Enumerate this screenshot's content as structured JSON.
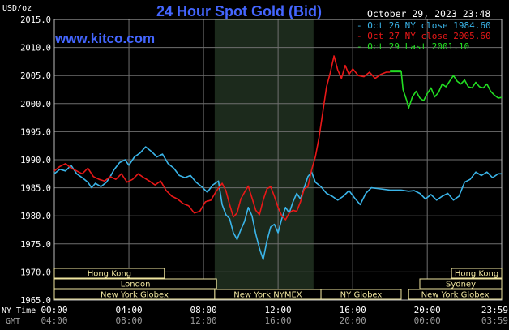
{
  "header": {
    "title": "24 Hour Spot Gold (Bid)",
    "site": "www.kitco.com",
    "timestamp": "October 29, 2023 23:48",
    "currency_label": "USD/oz"
  },
  "colors": {
    "background": "#000000",
    "grid": "#6f6f6f",
    "axis_text": "#ffffff",
    "title": "#4466ff",
    "site": "#4466ff",
    "shade": "#1c2a1c",
    "oct26": "#3ab4e8",
    "oct27": "#e81818",
    "oct29": "#22dd22",
    "market_bar_fill": "#000000",
    "market_bar_text": "#f0e6a0",
    "market_bar_border": "#f0e6a0"
  },
  "axes": {
    "time_row_label": "NY Time",
    "gmt_row_label": "GMT",
    "ny_ticks": [
      "00:00",
      "04:00",
      "08:00",
      "12:00",
      "16:00",
      "20:00",
      "23:59"
    ],
    "gmt_ticks": [
      "04:00",
      "08:00",
      "12:00",
      "16:00",
      "20:00",
      "00:00",
      "03:59"
    ]
  },
  "legend": [
    {
      "text": "Oct 26 NY close 1984.60",
      "color": "#3ab4e8"
    },
    {
      "text": "Oct 27 NY close 2005.60",
      "color": "#e81818"
    },
    {
      "text": "Oct 29 Last 2001.10",
      "color": "#22dd22"
    }
  ],
  "markets": [
    {
      "name": "Hong Kong",
      "start": 0,
      "end": 5.9,
      "row": 0
    },
    {
      "name": "London",
      "start": 0,
      "end": 8.7,
      "row": 1
    },
    {
      "name": "New York Globex",
      "start": 0,
      "end": 8.6,
      "row": 2
    },
    {
      "name": "New York NYMEX",
      "start": 8.6,
      "end": 14.3,
      "row": 2
    },
    {
      "name": "NY Globex",
      "start": 14.3,
      "end": 18.6,
      "row": 2
    },
    {
      "name": "Hong Kong",
      "start": 21.3,
      "end": 23.99,
      "row": 0
    },
    {
      "name": "Sydney",
      "start": 19.6,
      "end": 23.99,
      "row": 1
    },
    {
      "name": "New York Globex",
      "start": 19.0,
      "end": 23.99,
      "row": 2
    }
  ],
  "chart_data": {
    "type": "line",
    "title": "24 Hour Spot Gold (Bid)",
    "ylabel": "USD/oz",
    "xlabel": "NY Time",
    "xlim": [
      0,
      23.99
    ],
    "ylim": [
      1965,
      2015
    ],
    "yticks": [
      1965,
      1970,
      1975,
      1980,
      1985,
      1990,
      1995,
      2000,
      2005,
      2010,
      2015
    ],
    "grid": true,
    "legend_position": "top-right",
    "shaded_range": [
      8.6,
      13.9
    ],
    "series": [
      {
        "name": "Oct 26 NY close 1984.60",
        "color": "#3ab4e8",
        "points": [
          [
            0,
            1987.5
          ],
          [
            0.3,
            1988.3
          ],
          [
            0.6,
            1988.0
          ],
          [
            0.9,
            1989.0
          ],
          [
            1.2,
            1987.5
          ],
          [
            1.5,
            1986.8
          ],
          [
            1.8,
            1986.0
          ],
          [
            2.0,
            1985.0
          ],
          [
            2.2,
            1985.8
          ],
          [
            2.5,
            1985.2
          ],
          [
            2.8,
            1986.0
          ],
          [
            3.0,
            1987.0
          ],
          [
            3.2,
            1988.2
          ],
          [
            3.5,
            1989.5
          ],
          [
            3.8,
            1990.0
          ],
          [
            4.0,
            1989.0
          ],
          [
            4.3,
            1990.5
          ],
          [
            4.6,
            1991.2
          ],
          [
            4.9,
            1992.3
          ],
          [
            5.2,
            1991.5
          ],
          [
            5.5,
            1990.5
          ],
          [
            5.8,
            1991.0
          ],
          [
            6.1,
            1989.3
          ],
          [
            6.4,
            1988.5
          ],
          [
            6.7,
            1987.2
          ],
          [
            7.0,
            1986.8
          ],
          [
            7.3,
            1987.2
          ],
          [
            7.6,
            1986.0
          ],
          [
            7.9,
            1985.2
          ],
          [
            8.2,
            1984.2
          ],
          [
            8.5,
            1985.5
          ],
          [
            8.8,
            1986.2
          ],
          [
            9.0,
            1982.0
          ],
          [
            9.2,
            1980.2
          ],
          [
            9.4,
            1979.5
          ],
          [
            9.6,
            1977.0
          ],
          [
            9.8,
            1975.8
          ],
          [
            10.0,
            1977.5
          ],
          [
            10.2,
            1979.0
          ],
          [
            10.4,
            1981.5
          ],
          [
            10.6,
            1980.0
          ],
          [
            10.8,
            1976.8
          ],
          [
            11.0,
            1974.2
          ],
          [
            11.2,
            1972.2
          ],
          [
            11.4,
            1975.5
          ],
          [
            11.6,
            1978.0
          ],
          [
            11.8,
            1978.5
          ],
          [
            12.0,
            1977.0
          ],
          [
            12.2,
            1979.5
          ],
          [
            12.4,
            1981.5
          ],
          [
            12.6,
            1980.5
          ],
          [
            12.8,
            1982.5
          ],
          [
            13.0,
            1984.0
          ],
          [
            13.2,
            1983.0
          ],
          [
            13.4,
            1985.0
          ],
          [
            13.6,
            1987.0
          ],
          [
            13.8,
            1987.8
          ],
          [
            14.0,
            1986.0
          ],
          [
            14.3,
            1985.2
          ],
          [
            14.6,
            1984.0
          ],
          [
            14.9,
            1983.5
          ],
          [
            15.2,
            1982.8
          ],
          [
            15.5,
            1983.5
          ],
          [
            15.8,
            1984.5
          ],
          [
            16.1,
            1983.2
          ],
          [
            16.4,
            1982.0
          ],
          [
            16.7,
            1984.0
          ],
          [
            17.0,
            1985.0
          ],
          [
            17.5,
            1984.8
          ],
          [
            18.0,
            1984.6
          ],
          [
            18.6,
            1984.6
          ],
          [
            19.0,
            1984.4
          ],
          [
            19.3,
            1984.5
          ],
          [
            19.6,
            1984.0
          ],
          [
            19.9,
            1983.0
          ],
          [
            20.2,
            1983.8
          ],
          [
            20.5,
            1982.8
          ],
          [
            20.8,
            1983.5
          ],
          [
            21.1,
            1984.0
          ],
          [
            21.4,
            1982.8
          ],
          [
            21.7,
            1983.5
          ],
          [
            22.0,
            1986.0
          ],
          [
            22.3,
            1986.5
          ],
          [
            22.6,
            1987.8
          ],
          [
            22.9,
            1987.2
          ],
          [
            23.2,
            1987.8
          ],
          [
            23.5,
            1986.8
          ],
          [
            23.8,
            1987.5
          ],
          [
            23.99,
            1987.5
          ]
        ]
      },
      {
        "name": "Oct 27 NY close 2005.60",
        "color": "#e81818",
        "points": [
          [
            0,
            1988.0
          ],
          [
            0.3,
            1988.8
          ],
          [
            0.6,
            1989.3
          ],
          [
            0.9,
            1988.5
          ],
          [
            1.2,
            1988.0
          ],
          [
            1.5,
            1987.5
          ],
          [
            1.8,
            1988.5
          ],
          [
            2.1,
            1987.0
          ],
          [
            2.4,
            1986.5
          ],
          [
            2.7,
            1986.2
          ],
          [
            3.0,
            1987.0
          ],
          [
            3.3,
            1986.5
          ],
          [
            3.6,
            1987.5
          ],
          [
            3.9,
            1986.0
          ],
          [
            4.2,
            1986.5
          ],
          [
            4.5,
            1987.5
          ],
          [
            4.8,
            1986.8
          ],
          [
            5.1,
            1986.2
          ],
          [
            5.4,
            1985.5
          ],
          [
            5.7,
            1986.2
          ],
          [
            6.0,
            1984.5
          ],
          [
            6.3,
            1983.5
          ],
          [
            6.6,
            1983.0
          ],
          [
            6.9,
            1982.2
          ],
          [
            7.2,
            1981.8
          ],
          [
            7.5,
            1980.5
          ],
          [
            7.8,
            1980.8
          ],
          [
            8.1,
            1982.5
          ],
          [
            8.4,
            1982.8
          ],
          [
            8.7,
            1984.5
          ],
          [
            9.0,
            1985.8
          ],
          [
            9.2,
            1984.5
          ],
          [
            9.4,
            1982.0
          ],
          [
            9.6,
            1979.8
          ],
          [
            9.8,
            1980.5
          ],
          [
            10.0,
            1983.0
          ],
          [
            10.2,
            1984.2
          ],
          [
            10.4,
            1985.3
          ],
          [
            10.6,
            1983.2
          ],
          [
            10.8,
            1981.0
          ],
          [
            11.0,
            1980.2
          ],
          [
            11.2,
            1982.8
          ],
          [
            11.4,
            1984.8
          ],
          [
            11.6,
            1985.2
          ],
          [
            11.8,
            1983.5
          ],
          [
            12.0,
            1981.5
          ],
          [
            12.2,
            1980.0
          ],
          [
            12.4,
            1979.3
          ],
          [
            12.6,
            1980.5
          ],
          [
            12.8,
            1981.0
          ],
          [
            13.0,
            1980.8
          ],
          [
            13.2,
            1982.5
          ],
          [
            13.4,
            1984.8
          ],
          [
            13.6,
            1985.2
          ],
          [
            13.8,
            1988.2
          ],
          [
            14.0,
            1990.5
          ],
          [
            14.2,
            1994.0
          ],
          [
            14.4,
            1998.5
          ],
          [
            14.6,
            2003.0
          ],
          [
            14.8,
            2005.5
          ],
          [
            15.0,
            2008.5
          ],
          [
            15.2,
            2006.0
          ],
          [
            15.4,
            2004.5
          ],
          [
            15.6,
            2006.8
          ],
          [
            15.8,
            2005.2
          ],
          [
            16.0,
            2006.2
          ],
          [
            16.3,
            2005.0
          ],
          [
            16.6,
            2004.8
          ],
          [
            16.9,
            2005.6
          ],
          [
            17.2,
            2004.5
          ],
          [
            17.5,
            2005.2
          ],
          [
            17.8,
            2005.6
          ],
          [
            18.0,
            2005.6
          ]
        ]
      },
      {
        "name": "Oct 29 Last 2001.10",
        "color": "#22dd22",
        "points": [
          [
            18.0,
            2005.8
          ],
          [
            18.6,
            2005.8
          ],
          [
            18.7,
            2002.5
          ],
          [
            18.9,
            2000.5
          ],
          [
            19.0,
            1999.2
          ],
          [
            19.2,
            2001.2
          ],
          [
            19.4,
            2002.2
          ],
          [
            19.6,
            2001.0
          ],
          [
            19.8,
            2000.5
          ],
          [
            20.0,
            2001.8
          ],
          [
            20.2,
            2002.8
          ],
          [
            20.4,
            2001.2
          ],
          [
            20.6,
            2002.0
          ],
          [
            20.8,
            2003.5
          ],
          [
            21.0,
            2003.0
          ],
          [
            21.2,
            2004.0
          ],
          [
            21.4,
            2005.0
          ],
          [
            21.6,
            2004.0
          ],
          [
            21.8,
            2003.5
          ],
          [
            22.0,
            2004.2
          ],
          [
            22.2,
            2003.0
          ],
          [
            22.4,
            2002.8
          ],
          [
            22.6,
            2003.8
          ],
          [
            22.8,
            2003.0
          ],
          [
            23.0,
            2002.8
          ],
          [
            23.2,
            2003.5
          ],
          [
            23.4,
            2002.2
          ],
          [
            23.6,
            2001.5
          ],
          [
            23.8,
            2001.0
          ],
          [
            23.99,
            2001.1
          ]
        ]
      }
    ]
  }
}
